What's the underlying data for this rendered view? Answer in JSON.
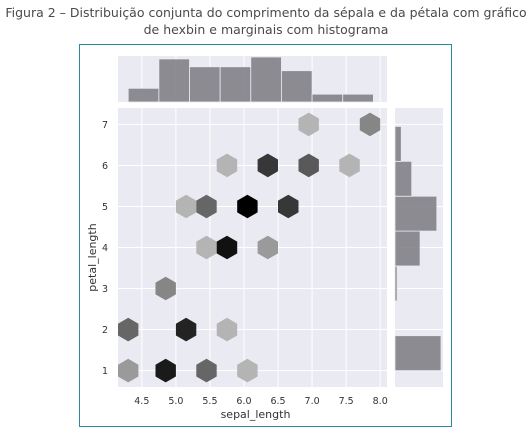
{
  "caption": "Figura 2 – Distribuição conjunta do comprimento da sépala e da pétala com gráfico de hexbin e marginais com histograma",
  "chart_data": {
    "type": "hexbin",
    "xlabel": "sepal_length",
    "ylabel": "petal_length",
    "xlim": [
      4.15,
      8.1
    ],
    "ylim": [
      0.6,
      7.4
    ],
    "xticks": [
      "4.5",
      "5.0",
      "5.5",
      "6.0",
      "6.5",
      "7.0",
      "7.5",
      "8.0"
    ],
    "yticks": [
      "1",
      "2",
      "3",
      "4",
      "5",
      "6",
      "7"
    ],
    "hexbins": [
      {
        "x": 4.3,
        "y": 1.0,
        "count": 2
      },
      {
        "x": 4.3,
        "y": 2.0,
        "count": 5
      },
      {
        "x": 4.85,
        "y": 1.0,
        "count": 12
      },
      {
        "x": 4.85,
        "y": 3.0,
        "count": 3
      },
      {
        "x": 5.15,
        "y": 2.0,
        "count": 11
      },
      {
        "x": 5.45,
        "y": 1.0,
        "count": 5
      },
      {
        "x": 5.15,
        "y": 5.0,
        "count": 1
      },
      {
        "x": 5.45,
        "y": 4.0,
        "count": 1
      },
      {
        "x": 5.45,
        "y": 5.0,
        "count": 5
      },
      {
        "x": 5.75,
        "y": 2.0,
        "count": 1
      },
      {
        "x": 5.75,
        "y": 4.0,
        "count": 13
      },
      {
        "x": 5.75,
        "y": 6.0,
        "count": 1
      },
      {
        "x": 6.05,
        "y": 1.0,
        "count": 1
      },
      {
        "x": 6.05,
        "y": 5.0,
        "count": 15
      },
      {
        "x": 6.35,
        "y": 4.0,
        "count": 2
      },
      {
        "x": 6.35,
        "y": 6.0,
        "count": 9
      },
      {
        "x": 6.65,
        "y": 5.0,
        "count": 9
      },
      {
        "x": 6.95,
        "y": 6.0,
        "count": 6
      },
      {
        "x": 6.95,
        "y": 7.0,
        "count": 1
      },
      {
        "x": 7.55,
        "y": 6.0,
        "count": 1
      },
      {
        "x": 7.85,
        "y": 7.0,
        "count": 3
      }
    ],
    "marginal_x": {
      "type": "histogram",
      "bin_edges": [
        4.3,
        4.75,
        5.2,
        5.65,
        6.1,
        6.55,
        7.0,
        7.45,
        7.9
      ],
      "counts": [
        7,
        22,
        18,
        18,
        23,
        16,
        4,
        4
      ]
    },
    "marginal_y": {
      "type": "histogram",
      "bin_edges": [
        1.0,
        1.85,
        2.7,
        3.55,
        4.4,
        5.25,
        6.1,
        6.95
      ],
      "counts": [
        22,
        0,
        1,
        12,
        20,
        8,
        3
      ]
    },
    "colormap": "greys",
    "grid": true
  }
}
